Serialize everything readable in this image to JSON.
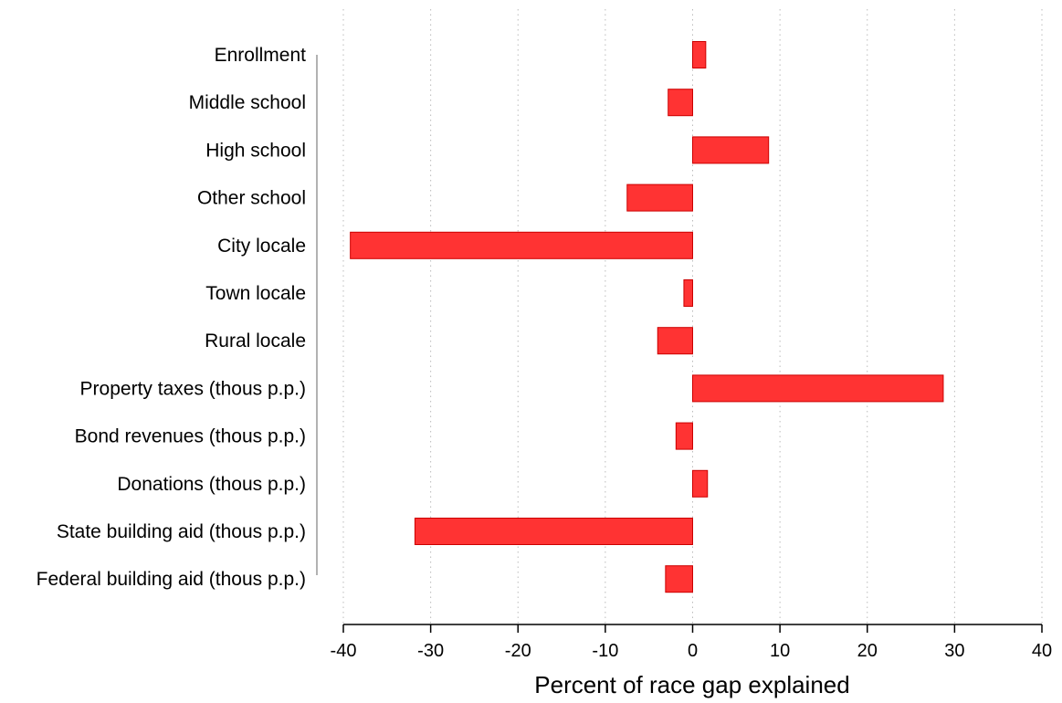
{
  "chart_data": {
    "type": "bar",
    "orientation": "horizontal",
    "title": "",
    "xlabel": "Percent of race gap explained",
    "ylabel": "",
    "xlim": [
      -40,
      40
    ],
    "xticks": [
      -40,
      -30,
      -20,
      -10,
      0,
      10,
      20,
      30,
      40
    ],
    "grid": "vertical dotted",
    "categories": [
      "Enrollment",
      "Middle school",
      "High school",
      "Other school",
      "City locale",
      "Town locale",
      "Rural locale",
      "Property taxes (thous p.p.)",
      "Bond revenues (thous p.p.)",
      "Donations (thous p.p.)",
      "State building aid (thous p.p.)",
      "Federal building aid (thous p.p.)"
    ],
    "values": [
      1.5,
      -2.8,
      8.7,
      -7.5,
      -39.2,
      -1.0,
      -4.0,
      28.7,
      -1.9,
      1.7,
      -31.8,
      -3.1
    ],
    "colors": {
      "bar_fill": "#ff3333",
      "bar_stroke": "#cc0000",
      "axis": "#000000",
      "grid": "#bbbbbb"
    }
  }
}
